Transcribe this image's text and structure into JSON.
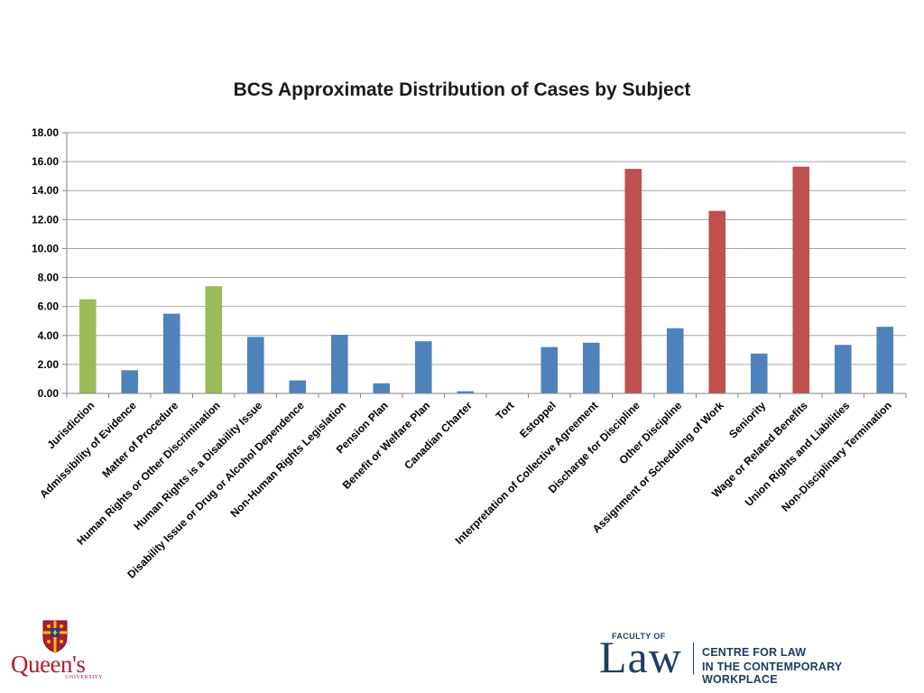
{
  "chart_data": {
    "type": "bar",
    "title": "BCS Approximate Distribution of Cases by Subject",
    "xlabel": "",
    "ylabel": "",
    "ylim": [
      0,
      18
    ],
    "yticks": [
      "0.00",
      "2.00",
      "4.00",
      "6.00",
      "8.00",
      "10.00",
      "12.00",
      "14.00",
      "16.00",
      "18.00"
    ],
    "grid": true,
    "categories": [
      "Jurisdiction",
      "Admissibility of Evidence",
      "Matter of Procedure",
      "Human Rights or Other Discrimination",
      "Human Rights is a Disability Issue",
      "Disability Issue or Drug or Alcohol Dependence",
      "Non-Human Rights Legislation",
      "Pension Plan",
      "Benefit or Welfare Plan",
      "Canadian Charter",
      "Tort",
      "Estoppel",
      "Interpretation of Collective Agreement",
      "Discharge for Discipline",
      "Other Discipline",
      "Assignment or Scheduling of Work",
      "Seniority",
      "Wage or Related Benefits",
      "Union Rights and Liabilities",
      "Non-Disciplinary Termination"
    ],
    "values": [
      6.5,
      1.6,
      5.5,
      7.4,
      3.9,
      0.9,
      4.05,
      0.7,
      3.6,
      0.15,
      0.0,
      3.2,
      3.5,
      15.5,
      4.5,
      12.6,
      2.75,
      15.65,
      3.35,
      4.6
    ],
    "bar_colors": [
      "#9bbb59",
      "#4f81bd",
      "#4f81bd",
      "#9bbb59",
      "#4f81bd",
      "#4f81bd",
      "#4f81bd",
      "#4f81bd",
      "#4f81bd",
      "#4f81bd",
      "#4f81bd",
      "#4f81bd",
      "#4f81bd",
      "#c0504d",
      "#4f81bd",
      "#c0504d",
      "#4f81bd",
      "#c0504d",
      "#4f81bd",
      "#4f81bd"
    ]
  },
  "logos": {
    "queens": {
      "wordmark": "Queen's",
      "subtext": "UNIVERSITY",
      "color": "#b01c2e"
    },
    "law": {
      "faculty_of": "FACULTY OF",
      "law": "Law",
      "centre_line1": "CENTRE FOR LAW",
      "centre_line2": "IN THE CONTEMPORARY WORKPLACE",
      "color": "#1f3c63"
    }
  },
  "colors": {
    "gridline": "#a6a6a6",
    "axis": "#868686"
  }
}
